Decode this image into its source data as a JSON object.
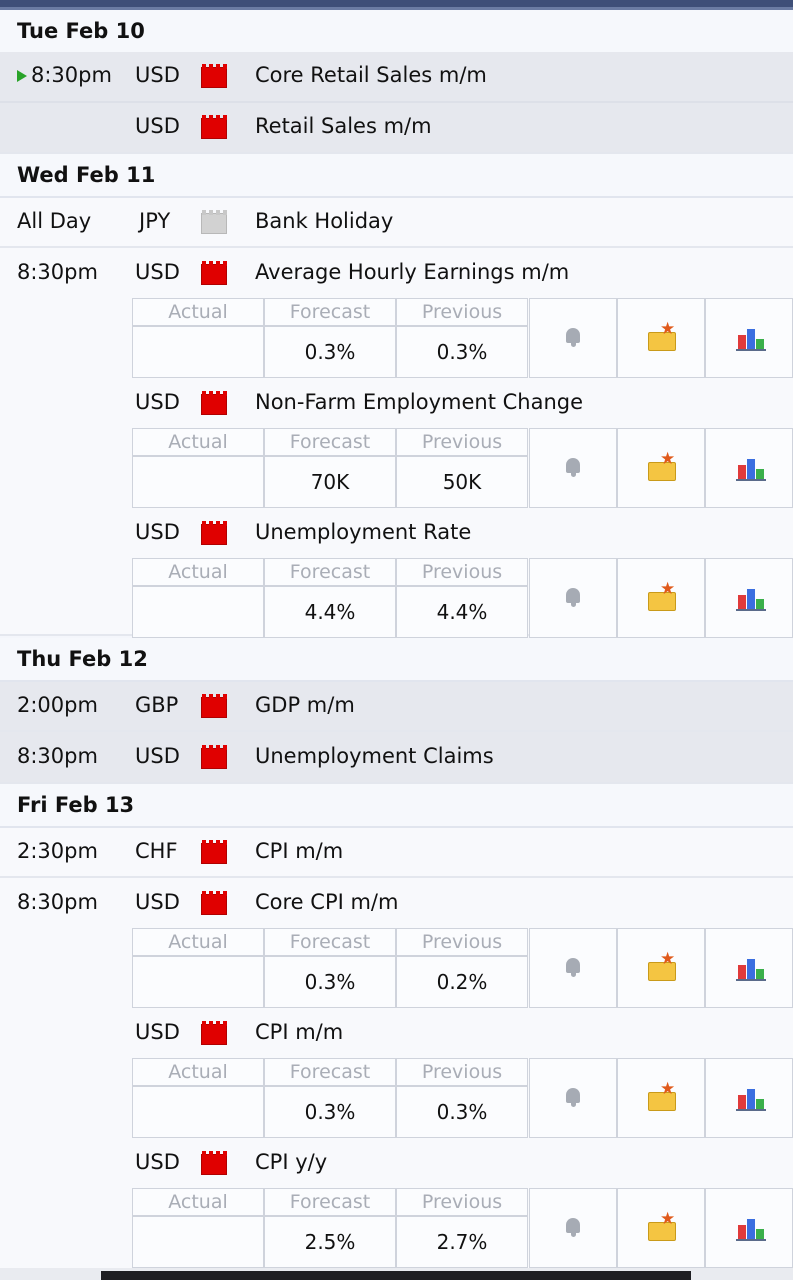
{
  "days": [
    {
      "label": "Tue Feb 10"
    },
    {
      "label": "Wed Feb 11"
    },
    {
      "label": "Thu Feb 12"
    },
    {
      "label": "Fri Feb 13"
    }
  ],
  "events": [
    {
      "time": "8:30pm",
      "currency": "USD",
      "impact": "high",
      "title": "Core Retail Sales m/m"
    },
    {
      "time": "",
      "currency": "USD",
      "impact": "high",
      "title": "Retail Sales m/m"
    },
    {
      "time": "All Day",
      "currency": "JPY",
      "impact": "holiday",
      "title": "Bank Holiday"
    },
    {
      "time": "8:30pm",
      "currency": "USD",
      "impact": "high",
      "title": "Average Hourly Earnings m/m",
      "actual": "",
      "forecast": "0.3%",
      "previous": "0.3%"
    },
    {
      "time": "",
      "currency": "USD",
      "impact": "high",
      "title": "Non-Farm Employment Change",
      "actual": "",
      "forecast": "70K",
      "previous": "50K"
    },
    {
      "time": "",
      "currency": "USD",
      "impact": "high",
      "title": "Unemployment Rate",
      "actual": "",
      "forecast": "4.4%",
      "previous": "4.4%"
    },
    {
      "time": "2:00pm",
      "currency": "GBP",
      "impact": "high",
      "title": "GDP m/m"
    },
    {
      "time": "8:30pm",
      "currency": "USD",
      "impact": "high",
      "title": "Unemployment Claims"
    },
    {
      "time": "2:30pm",
      "currency": "CHF",
      "impact": "high",
      "title": "CPI m/m"
    },
    {
      "time": "8:30pm",
      "currency": "USD",
      "impact": "high",
      "title": "Core CPI m/m",
      "actual": "",
      "forecast": "0.3%",
      "previous": "0.2%"
    },
    {
      "time": "",
      "currency": "USD",
      "impact": "high",
      "title": "CPI m/m",
      "actual": "",
      "forecast": "0.3%",
      "previous": "0.3%"
    },
    {
      "time": "",
      "currency": "USD",
      "impact": "high",
      "title": "CPI y/y",
      "actual": "",
      "forecast": "2.5%",
      "previous": "2.7%"
    }
  ],
  "detail_headers": {
    "actual": "Actual",
    "forecast": "Forecast",
    "previous": "Previous"
  },
  "icons": {
    "alert": "bell-icon",
    "favorite": "folder-star-icon",
    "history": "bar-chart-icon",
    "impact_high": "red-impact-folder-icon",
    "impact_holiday": "gray-impact-folder-icon",
    "current": "play-triangle-icon"
  },
  "colors": {
    "impact_high": "#e00000",
    "impact_holiday": "#d2d2d2",
    "current_marker": "#29a329"
  }
}
